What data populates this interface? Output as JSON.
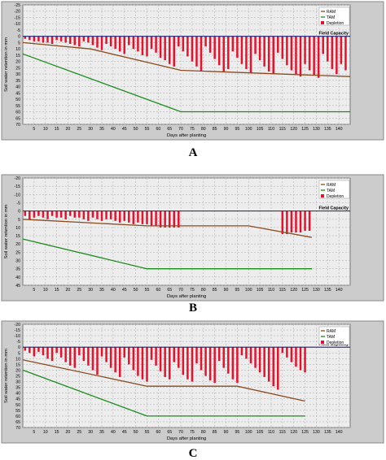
{
  "colors": {
    "panel_bg": "#cccccc",
    "plot_bg": "#ededed",
    "grid": "#b4b4b4",
    "field_capacity": "#1e1e6e",
    "ram": "#8c4a1e",
    "tam": "#1a8c1a",
    "depletion": "#e8102a"
  },
  "chart_data": [
    {
      "type": "bar",
      "panel_label": "A",
      "xlabel": "Days after planting",
      "ylabel": "Soil water retention in mm",
      "xlim": [
        0,
        145
      ],
      "ylim": [
        70,
        -25
      ],
      "y_inverted": true,
      "x_ticks": [
        5,
        10,
        15,
        20,
        25,
        30,
        35,
        40,
        45,
        50,
        55,
        60,
        65,
        70,
        75,
        80,
        85,
        90,
        95,
        100,
        105,
        110,
        115,
        120,
        125,
        130,
        135,
        140
      ],
      "y_ticks": [
        -25,
        -20,
        -15,
        -10,
        -5,
        0,
        5,
        10,
        15,
        20,
        25,
        30,
        35,
        40,
        45,
        50,
        55,
        60,
        65,
        70
      ],
      "grid": true,
      "legend_position": "top-right",
      "legend": [
        "RAM",
        "TAM",
        "Depletion"
      ],
      "field_capacity_label": "Field Capacity",
      "series": [
        {
          "name": "RAM",
          "kind": "line",
          "x": [
            0,
            30,
            70,
            145
          ],
          "y": [
            5,
            10,
            27,
            32
          ]
        },
        {
          "name": "TAM",
          "kind": "line",
          "x": [
            0,
            70,
            145
          ],
          "y": [
            14,
            60,
            60
          ]
        },
        {
          "name": "Depletion",
          "kind": "bars",
          "x": [
            1,
            3,
            5,
            7,
            9,
            11,
            13,
            15,
            17,
            19,
            21,
            23,
            25,
            27,
            29,
            31,
            33,
            35,
            37,
            39,
            41,
            43,
            45,
            47,
            49,
            51,
            53,
            55,
            57,
            59,
            61,
            63,
            65,
            67,
            69,
            71,
            73,
            75,
            77,
            79,
            81,
            83,
            85,
            87,
            89,
            91,
            93,
            95,
            97,
            99,
            101,
            103,
            105,
            107,
            109,
            111,
            113,
            115,
            117,
            119,
            121,
            123,
            125,
            127,
            129,
            131,
            133,
            135,
            137,
            139,
            141,
            143
          ],
          "values": [
            2,
            3,
            4,
            4,
            5,
            5,
            6,
            3,
            4,
            5,
            6,
            7,
            8,
            4,
            5,
            7,
            9,
            11,
            6,
            8,
            10,
            12,
            14,
            7,
            10,
            12,
            15,
            16,
            10,
            13,
            17,
            19,
            22,
            24,
            8,
            12,
            16,
            20,
            24,
            28,
            8,
            13,
            18,
            23,
            28,
            26,
            12,
            17,
            22,
            26,
            29,
            14,
            19,
            24,
            28,
            30,
            13,
            18,
            23,
            27,
            30,
            32,
            22,
            27,
            31,
            33,
            14,
            20,
            26,
            30,
            22,
            27
          ]
        }
      ]
    },
    {
      "type": "bar",
      "panel_label": "B",
      "xlabel": "Days after planting",
      "ylabel": "Soil water retention in mm",
      "xlim": [
        0,
        145
      ],
      "ylim": [
        45,
        -20
      ],
      "y_inverted": true,
      "x_ticks": [
        5,
        10,
        15,
        20,
        25,
        30,
        35,
        40,
        45,
        50,
        55,
        60,
        65,
        70,
        75,
        80,
        85,
        90,
        95,
        100,
        105,
        110,
        115,
        120,
        125,
        130,
        135,
        140
      ],
      "y_ticks": [
        -20,
        -15,
        -10,
        -5,
        0,
        5,
        10,
        15,
        20,
        25,
        30,
        35,
        40,
        45
      ],
      "grid": true,
      "legend_position": "top-right",
      "legend": [
        "RAM",
        "TAM",
        "Depletion"
      ],
      "field_capacity_label": "Field Capacity",
      "series": [
        {
          "name": "RAM",
          "kind": "line",
          "x": [
            0,
            55,
            100,
            128
          ],
          "y": [
            5,
            9,
            9,
            16
          ]
        },
        {
          "name": "TAM",
          "kind": "line",
          "x": [
            0,
            55,
            128
          ],
          "y": [
            17,
            35,
            35
          ]
        },
        {
          "name": "Depletion",
          "kind": "bars",
          "x": [
            1,
            3,
            5,
            7,
            9,
            11,
            13,
            15,
            17,
            19,
            21,
            23,
            25,
            27,
            29,
            31,
            33,
            35,
            37,
            39,
            41,
            43,
            45,
            47,
            49,
            51,
            53,
            55,
            57,
            59,
            61,
            63,
            65,
            67,
            69,
            115,
            117,
            119,
            121,
            123,
            125,
            127
          ],
          "values": [
            3,
            5,
            4,
            3,
            4,
            5,
            3,
            4,
            4,
            5,
            3,
            4,
            4,
            5,
            6,
            4,
            5,
            6,
            5,
            5,
            6,
            7,
            6,
            7,
            8,
            7,
            8,
            8,
            9,
            9,
            10,
            10,
            10,
            10,
            10,
            14,
            14,
            13,
            13,
            13,
            12,
            12
          ]
        }
      ]
    },
    {
      "type": "bar",
      "panel_label": "C",
      "xlabel": "Days after planting",
      "ylabel": "Soil water retention in mm",
      "xlim": [
        0,
        145
      ],
      "ylim": [
        70,
        -20
      ],
      "y_inverted": true,
      "x_ticks": [
        5,
        10,
        15,
        20,
        25,
        30,
        35,
        40,
        45,
        50,
        55,
        60,
        65,
        70,
        75,
        80,
        85,
        90,
        95,
        100,
        105,
        110,
        115,
        120,
        125,
        130,
        135,
        140
      ],
      "y_ticks": [
        -20,
        -15,
        -10,
        -5,
        0,
        5,
        10,
        15,
        20,
        25,
        30,
        35,
        40,
        45,
        50,
        55,
        60,
        65,
        70
      ],
      "grid": true,
      "legend_position": "top-right",
      "legend": [
        "RAM",
        "TAM",
        "Depletion"
      ],
      "field_capacity_label": "Field Capacity",
      "series": [
        {
          "name": "RAM",
          "kind": "line",
          "x": [
            0,
            55,
            95,
            125
          ],
          "y": [
            11,
            34,
            34,
            47
          ]
        },
        {
          "name": "TAM",
          "kind": "line",
          "x": [
            0,
            55,
            125
          ],
          "y": [
            20,
            60,
            60
          ]
        },
        {
          "name": "Depletion",
          "kind": "bars",
          "x": [
            1,
            3,
            5,
            7,
            9,
            11,
            13,
            15,
            17,
            19,
            21,
            23,
            25,
            27,
            29,
            31,
            33,
            35,
            37,
            39,
            41,
            43,
            45,
            47,
            49,
            51,
            53,
            55,
            57,
            59,
            61,
            63,
            65,
            67,
            69,
            71,
            73,
            75,
            77,
            79,
            81,
            83,
            85,
            87,
            89,
            91,
            93,
            95,
            97,
            99,
            101,
            103,
            105,
            107,
            109,
            111,
            113,
            115,
            117,
            119,
            121,
            123,
            125
          ],
          "values": [
            3,
            5,
            8,
            4,
            7,
            10,
            12,
            5,
            9,
            13,
            16,
            18,
            7,
            12,
            16,
            20,
            24,
            8,
            13,
            18,
            22,
            26,
            9,
            15,
            20,
            25,
            28,
            30,
            11,
            16,
            21,
            26,
            28,
            13,
            18,
            24,
            28,
            30,
            14,
            20,
            25,
            29,
            31,
            12,
            18,
            23,
            28,
            31,
            7,
            10,
            14,
            18,
            22,
            26,
            30,
            34,
            37,
            5,
            9,
            13,
            17,
            20,
            22
          ]
        }
      ]
    }
  ]
}
